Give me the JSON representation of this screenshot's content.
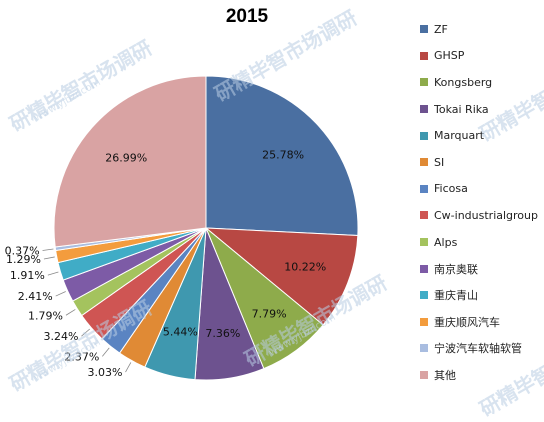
{
  "chart_data": {
    "type": "pie",
    "title": "2015",
    "legend_position": "right",
    "slices": [
      {
        "name": "ZF",
        "value": 25.78,
        "label": "25.78%",
        "color": "#4a6fa1"
      },
      {
        "name": "GHSP",
        "value": 10.22,
        "label": "10.22%",
        "color": "#b84843"
      },
      {
        "name": "Kongsberg",
        "value": 7.79,
        "label": "7.79%",
        "color": "#8eab4b"
      },
      {
        "name": "Tokai Rika",
        "value": 7.36,
        "label": "7.36%",
        "color": "#6d528f"
      },
      {
        "name": "Marquart",
        "value": 5.44,
        "label": "5.44%",
        "color": "#3f98af"
      },
      {
        "name": "SI",
        "value": 3.03,
        "label": "3.03%",
        "color": "#e08a35"
      },
      {
        "name": "Ficosa",
        "value": 2.37,
        "label": "2.37%",
        "color": "#5a84c2"
      },
      {
        "name": "Cw-industrialgroup",
        "value": 3.24,
        "label": "3.24%",
        "color": "#cf5553"
      },
      {
        "name": "Alps",
        "value": 1.79,
        "label": "1.79%",
        "color": "#a4c35e"
      },
      {
        "name": "南京奥联",
        "value": 2.41,
        "label": "2.41%",
        "color": "#7d5ba6"
      },
      {
        "name": "重庆青山",
        "value": 1.91,
        "label": "1.91%",
        "color": "#40acc6"
      },
      {
        "name": "重庆顺风汽车",
        "value": 1.29,
        "label": "1.29%",
        "color": "#f39c3d"
      },
      {
        "name": "宁波汽车软轴软管",
        "value": 0.37,
        "label": "0.37%",
        "color": "#a9bde0"
      },
      {
        "name": "其他",
        "value": 26.99,
        "label": "26.99%",
        "color": "#d9a3a3"
      }
    ]
  },
  "watermark": {
    "text": "研精毕智市场调研",
    "url": "www.yjbzr.com"
  }
}
